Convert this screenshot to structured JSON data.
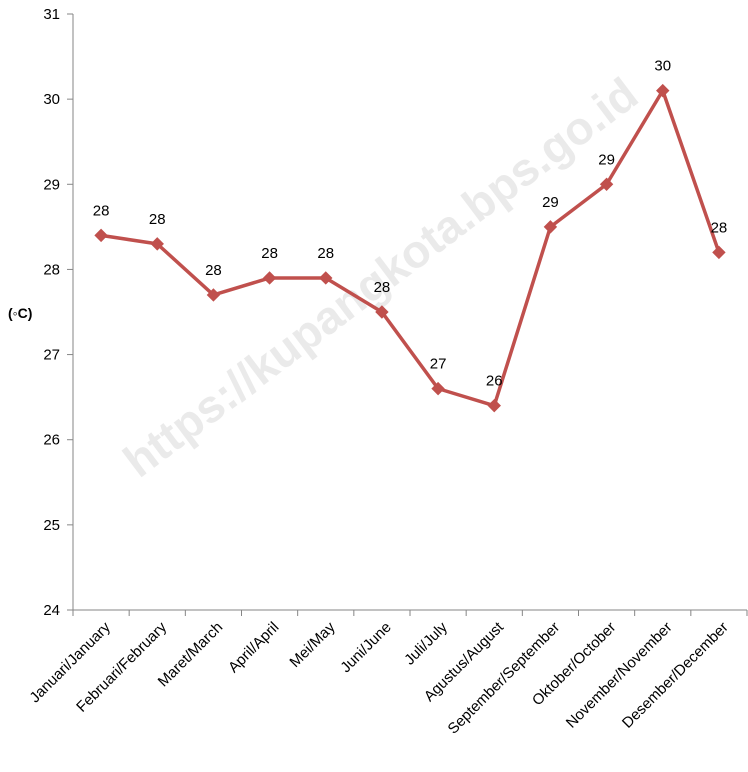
{
  "chart_data": {
    "type": "line",
    "title": "",
    "xlabel": "",
    "ylabel": "(◦C)",
    "ylim": [
      24,
      31
    ],
    "yticks": [
      24,
      25,
      26,
      27,
      28,
      29,
      30,
      31
    ],
    "grid": false,
    "legend": "none",
    "categories": [
      "Januari/January",
      "Februari/February",
      "Maret/March",
      "April/April",
      "Mei/May",
      "Juni/June",
      "Juli/July",
      "Agustus/August",
      "September/September",
      "Oktober/October",
      "November/November",
      "Desember/December"
    ],
    "series": [
      {
        "values": [
          28.4,
          28.3,
          27.7,
          27.9,
          27.9,
          27.5,
          26.6,
          26.4,
          28.5,
          29.0,
          30.1,
          28.2
        ],
        "data_labels": [
          "28",
          "28",
          "28",
          "28",
          "28",
          "28",
          "27",
          "26",
          "29",
          "29",
          "30",
          "28"
        ],
        "color": "#c0504d"
      }
    ],
    "watermark": "https://kupangkota.bps.go.id"
  }
}
